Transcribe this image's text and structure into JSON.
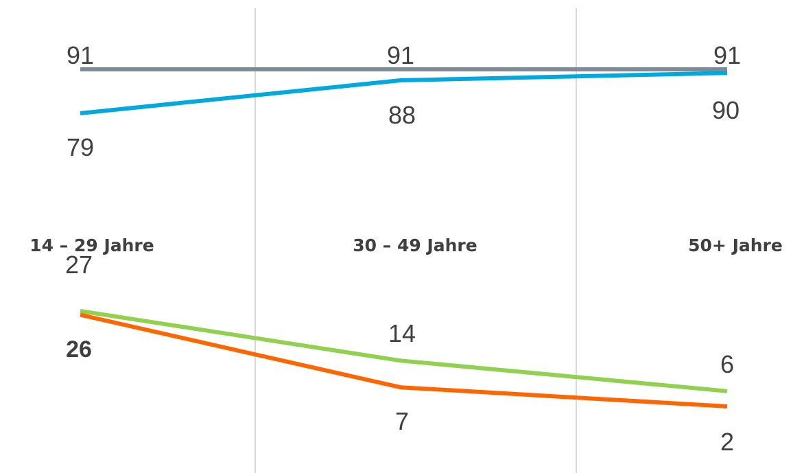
{
  "chart_data": [
    {
      "type": "line",
      "categories": [
        "14 – 29 Jahre",
        "30 – 49 Jahre",
        "50+ Jahre"
      ],
      "series": [
        {
          "color": "#7f8a96",
          "values": [
            91,
            91,
            91
          ]
        },
        {
          "color": "#00a9dd",
          "values": [
            79,
            88,
            90
          ]
        }
      ],
      "title": "",
      "xlabel": "",
      "ylabel": "",
      "grid": false
    },
    {
      "type": "line",
      "categories": [
        "14 – 29 Jahre",
        "30 – 49 Jahre",
        "50+ Jahre"
      ],
      "series": [
        {
          "color": "#92d050",
          "values": [
            27,
            14,
            6
          ]
        },
        {
          "color": "#ff6600",
          "values": [
            26,
            7,
            2
          ]
        }
      ],
      "title": "",
      "xlabel": "",
      "ylabel": "",
      "grid": false
    }
  ]
}
